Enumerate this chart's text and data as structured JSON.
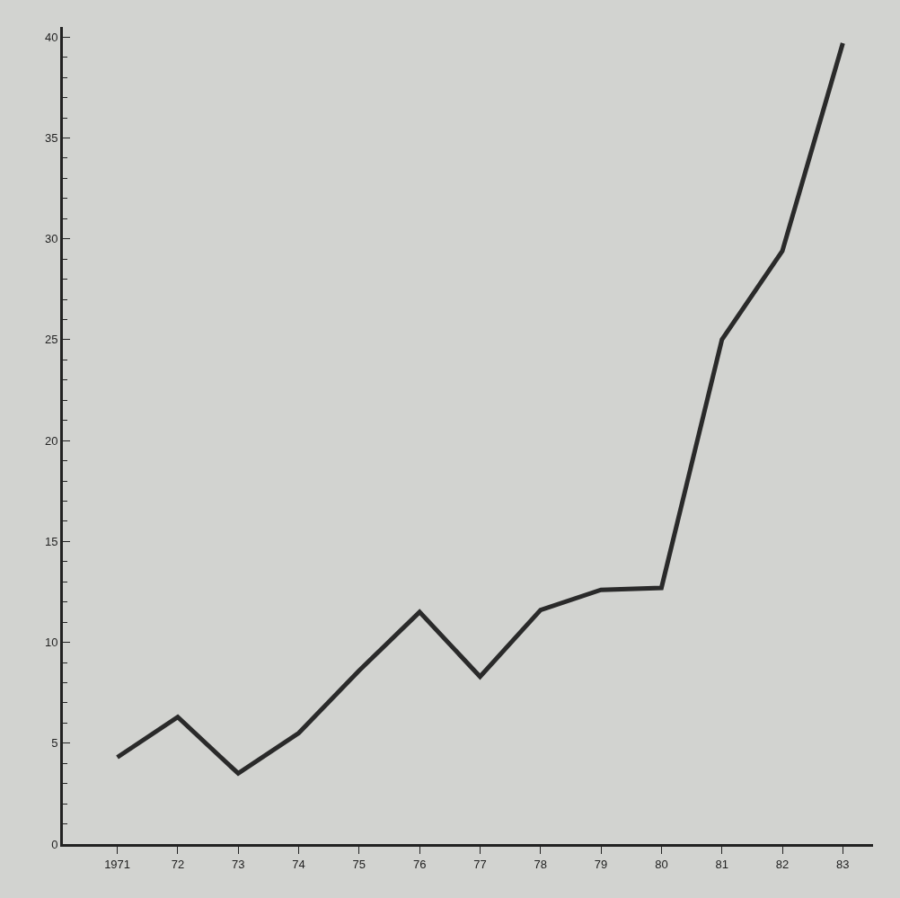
{
  "chart_data": {
    "type": "line",
    "categories": [
      "1971",
      "72",
      "73",
      "74",
      "75",
      "76",
      "77",
      "78",
      "79",
      "80",
      "81",
      "82",
      "83"
    ],
    "series": [
      {
        "color": "#2a2a2a",
        "values": [
          4.3,
          6.3,
          3.5,
          5.5,
          8.6,
          11.5,
          8.3,
          11.6,
          12.6,
          12.7,
          25.0,
          29.4,
          39.7
        ]
      }
    ],
    "ylim": [
      0,
      40.5
    ],
    "yticks": [
      0,
      5,
      10,
      15,
      20,
      25,
      30,
      35,
      40
    ],
    "grid": false,
    "marker": "none",
    "line_style": "solid"
  }
}
